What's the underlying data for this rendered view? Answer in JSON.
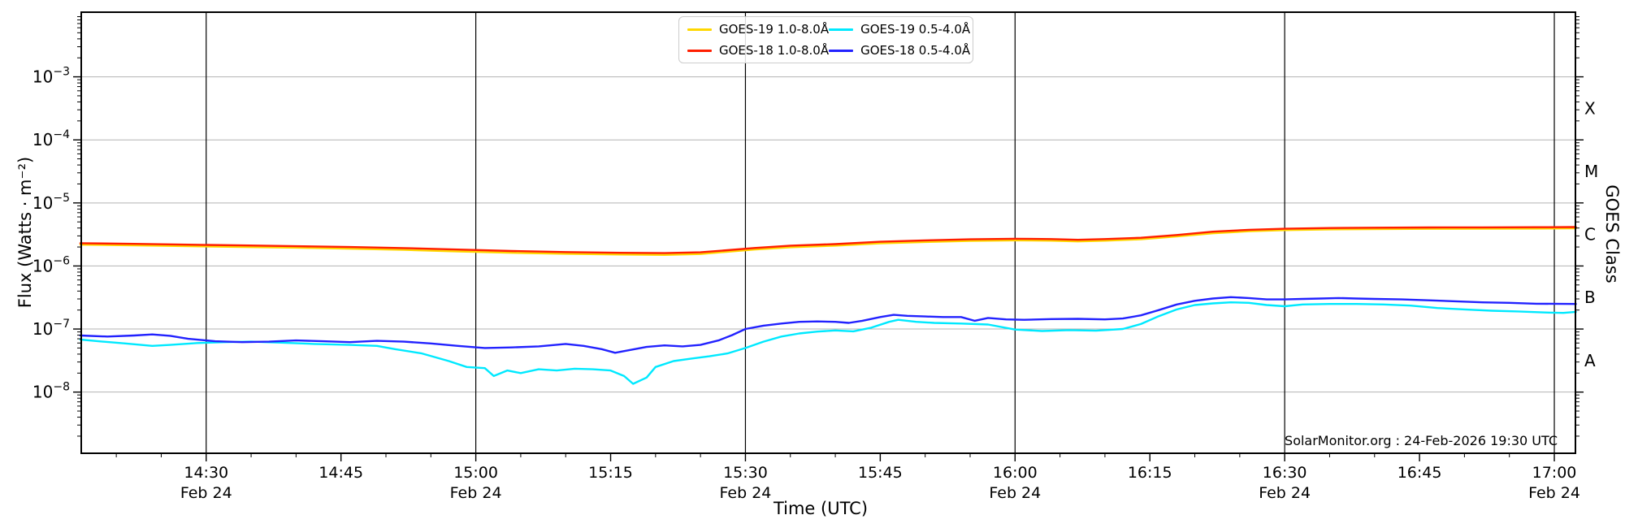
{
  "annotation": "SolarMonitor.org : 24-Feb-2026 19:30 UTC",
  "chart_data": {
    "type": "line",
    "title": "",
    "xlabel": "Time (UTC)",
    "ylabel_left": "Flux (Watts · m⁻²)",
    "ylabel_right": "GOES Class",
    "legend_position": "top-center",
    "grid": {
      "horizontal": "light-gray at each decade",
      "vertical": "black at 30-min ticks"
    },
    "xlim_minutes": [
      856.1,
      1022.35
    ],
    "ylim": [
      1.07e-09,
      0.0106
    ],
    "colors": {
      "grid_h": "#b3b3b3",
      "grid_v": "#000000",
      "spine": "#000000"
    },
    "x_ticks": [
      {
        "label": "14:30",
        "min": 870,
        "grid": true,
        "date": "Feb 24"
      },
      {
        "label": "14:45",
        "min": 885,
        "grid": false
      },
      {
        "label": "15:00",
        "min": 900,
        "grid": true,
        "date": "Feb 24"
      },
      {
        "label": "15:15",
        "min": 915,
        "grid": false
      },
      {
        "label": "15:30",
        "min": 930,
        "grid": true,
        "date": "Feb 24"
      },
      {
        "label": "15:45",
        "min": 945,
        "grid": false
      },
      {
        "label": "16:00",
        "min": 960,
        "grid": true,
        "date": "Feb 24"
      },
      {
        "label": "16:15",
        "min": 975,
        "grid": false
      },
      {
        "label": "16:30",
        "min": 990,
        "grid": true,
        "date": "Feb 24"
      },
      {
        "label": "16:45",
        "min": 1005,
        "grid": false
      },
      {
        "label": "17:00",
        "min": 1020,
        "grid": true,
        "date": "Feb 24"
      }
    ],
    "y_ticks": [
      {
        "exp": -3,
        "label": "10⁻³"
      },
      {
        "exp": -4,
        "label": "10⁻⁴"
      },
      {
        "exp": -5,
        "label": "10⁻⁵"
      },
      {
        "exp": -6,
        "label": "10⁻⁶"
      },
      {
        "exp": -7,
        "label": "10⁻⁷"
      },
      {
        "exp": -8,
        "label": "10⁻⁸"
      }
    ],
    "goes_classes": [
      {
        "label": "X",
        "mid_exp": -3.5
      },
      {
        "label": "M",
        "mid_exp": -4.5
      },
      {
        "label": "C",
        "mid_exp": -5.5
      },
      {
        "label": "B",
        "mid_exp": -6.5
      },
      {
        "label": "A",
        "mid_exp": -7.5
      }
    ],
    "series": [
      {
        "name": "GOES-19 long",
        "label": "GOES-19 1.0-8.0Å",
        "color": "#FFD700",
        "points": [
          [
            856,
            2.18e-06
          ],
          [
            862,
            2.12e-06
          ],
          [
            868,
            2.06e-06
          ],
          [
            874,
            2e-06
          ],
          [
            880,
            1.95e-06
          ],
          [
            886,
            1.88e-06
          ],
          [
            892,
            1.8e-06
          ],
          [
            898,
            1.7e-06
          ],
          [
            904,
            1.62e-06
          ],
          [
            910,
            1.56e-06
          ],
          [
            916,
            1.52e-06
          ],
          [
            921,
            1.5e-06
          ],
          [
            925,
            1.55e-06
          ],
          [
            928,
            1.68e-06
          ],
          [
            931,
            1.82e-06
          ],
          [
            935,
            1.98e-06
          ],
          [
            940,
            2.1e-06
          ],
          [
            945,
            2.28e-06
          ],
          [
            950,
            2.4e-06
          ],
          [
            955,
            2.5e-06
          ],
          [
            960,
            2.55e-06
          ],
          [
            964,
            2.52e-06
          ],
          [
            967,
            2.45e-06
          ],
          [
            970,
            2.52e-06
          ],
          [
            974,
            2.65e-06
          ],
          [
            978,
            2.95e-06
          ],
          [
            982,
            3.3e-06
          ],
          [
            986,
            3.55e-06
          ],
          [
            990,
            3.7e-06
          ],
          [
            995,
            3.8e-06
          ],
          [
            1000,
            3.85e-06
          ],
          [
            1006,
            3.88e-06
          ],
          [
            1012,
            3.9e-06
          ],
          [
            1018,
            3.92e-06
          ],
          [
            1022.4,
            3.95e-06
          ]
        ]
      },
      {
        "name": "GOES-18 long",
        "label": "GOES-18 1.0-8.0Å",
        "color": "#FF1E00",
        "points": [
          [
            856,
            2.3e-06
          ],
          [
            862,
            2.24e-06
          ],
          [
            868,
            2.18e-06
          ],
          [
            874,
            2.12e-06
          ],
          [
            880,
            2.06e-06
          ],
          [
            886,
            2e-06
          ],
          [
            892,
            1.92e-06
          ],
          [
            898,
            1.82e-06
          ],
          [
            904,
            1.73e-06
          ],
          [
            910,
            1.66e-06
          ],
          [
            916,
            1.62e-06
          ],
          [
            921,
            1.6e-06
          ],
          [
            925,
            1.65e-06
          ],
          [
            928,
            1.78e-06
          ],
          [
            931,
            1.93e-06
          ],
          [
            935,
            2.1e-06
          ],
          [
            940,
            2.22e-06
          ],
          [
            945,
            2.42e-06
          ],
          [
            950,
            2.55e-06
          ],
          [
            955,
            2.65e-06
          ],
          [
            960,
            2.7e-06
          ],
          [
            964,
            2.67e-06
          ],
          [
            967,
            2.6e-06
          ],
          [
            970,
            2.67e-06
          ],
          [
            974,
            2.8e-06
          ],
          [
            978,
            3.1e-06
          ],
          [
            982,
            3.5e-06
          ],
          [
            986,
            3.75e-06
          ],
          [
            990,
            3.9e-06
          ],
          [
            995,
            4e-06
          ],
          [
            1000,
            4.05e-06
          ],
          [
            1006,
            4.08e-06
          ],
          [
            1012,
            4.1e-06
          ],
          [
            1018,
            4.12e-06
          ],
          [
            1022.4,
            4.15e-06
          ]
        ]
      },
      {
        "name": "GOES-19 short",
        "label": "GOES-19 0.5-4.0Å",
        "color": "#00E9FF",
        "points": [
          [
            856,
            6.8e-08
          ],
          [
            858,
            6.4e-08
          ],
          [
            861,
            5.9e-08
          ],
          [
            864,
            5.4e-08
          ],
          [
            866,
            5.6e-08
          ],
          [
            869,
            6e-08
          ],
          [
            872,
            6.2e-08
          ],
          [
            875,
            6.3e-08
          ],
          [
            878,
            6.1e-08
          ],
          [
            882,
            5.8e-08
          ],
          [
            886,
            5.6e-08
          ],
          [
            889,
            5.4e-08
          ],
          [
            891,
            4.8e-08
          ],
          [
            894,
            4.1e-08
          ],
          [
            897,
            3.1e-08
          ],
          [
            899,
            2.5e-08
          ],
          [
            901,
            2.4e-08
          ],
          [
            902,
            1.8e-08
          ],
          [
            903.5,
            2.2e-08
          ],
          [
            905,
            2e-08
          ],
          [
            907,
            2.3e-08
          ],
          [
            909,
            2.2e-08
          ],
          [
            911,
            2.35e-08
          ],
          [
            913,
            2.3e-08
          ],
          [
            915,
            2.2e-08
          ],
          [
            916.5,
            1.8e-08
          ],
          [
            917.5,
            1.35e-08
          ],
          [
            919,
            1.7e-08
          ],
          [
            920,
            2.5e-08
          ],
          [
            922,
            3.1e-08
          ],
          [
            924,
            3.4e-08
          ],
          [
            926,
            3.7e-08
          ],
          [
            928,
            4.1e-08
          ],
          [
            930,
            5e-08
          ],
          [
            932,
            6.3e-08
          ],
          [
            934,
            7.6e-08
          ],
          [
            936,
            8.5e-08
          ],
          [
            938,
            9.1e-08
          ],
          [
            940,
            9.5e-08
          ],
          [
            942,
            9.2e-08
          ],
          [
            944,
            1.05e-07
          ],
          [
            946,
            1.3e-07
          ],
          [
            947,
            1.4e-07
          ],
          [
            949,
            1.3e-07
          ],
          [
            951,
            1.25e-07
          ],
          [
            954,
            1.22e-07
          ],
          [
            957,
            1.18e-07
          ],
          [
            960,
            9.8e-08
          ],
          [
            963,
            9.3e-08
          ],
          [
            966,
            9.6e-08
          ],
          [
            969,
            9.4e-08
          ],
          [
            972,
            1e-07
          ],
          [
            974,
            1.2e-07
          ],
          [
            976,
            1.6e-07
          ],
          [
            978,
            2.05e-07
          ],
          [
            980,
            2.4e-07
          ],
          [
            982,
            2.55e-07
          ],
          [
            984,
            2.65e-07
          ],
          [
            986,
            2.6e-07
          ],
          [
            988,
            2.4e-07
          ],
          [
            990,
            2.3e-07
          ],
          [
            992,
            2.45e-07
          ],
          [
            995,
            2.5e-07
          ],
          [
            998,
            2.5e-07
          ],
          [
            1001,
            2.45e-07
          ],
          [
            1004,
            2.35e-07
          ],
          [
            1007,
            2.15e-07
          ],
          [
            1010,
            2.05e-07
          ],
          [
            1013,
            1.95e-07
          ],
          [
            1016,
            1.9e-07
          ],
          [
            1019,
            1.83e-07
          ],
          [
            1021,
            1.8e-07
          ],
          [
            1022.4,
            1.87e-07
          ]
        ]
      },
      {
        "name": "GOES-18 short",
        "label": "GOES-18 0.5-4.0Å",
        "color": "#2222FF",
        "points": [
          [
            856,
            7.9e-08
          ],
          [
            859,
            7.6e-08
          ],
          [
            862,
            7.9e-08
          ],
          [
            864,
            8.2e-08
          ],
          [
            866,
            7.8e-08
          ],
          [
            868,
            7e-08
          ],
          [
            871,
            6.4e-08
          ],
          [
            874,
            6.2e-08
          ],
          [
            877,
            6.3e-08
          ],
          [
            880,
            6.6e-08
          ],
          [
            883,
            6.4e-08
          ],
          [
            886,
            6.2e-08
          ],
          [
            889,
            6.5e-08
          ],
          [
            892,
            6.3e-08
          ],
          [
            895,
            5.9e-08
          ],
          [
            898,
            5.4e-08
          ],
          [
            901,
            5e-08
          ],
          [
            904,
            5.1e-08
          ],
          [
            907,
            5.3e-08
          ],
          [
            910,
            5.8e-08
          ],
          [
            912,
            5.4e-08
          ],
          [
            914,
            4.8e-08
          ],
          [
            915.5,
            4.2e-08
          ],
          [
            917,
            4.6e-08
          ],
          [
            919,
            5.2e-08
          ],
          [
            921,
            5.5e-08
          ],
          [
            923,
            5.3e-08
          ],
          [
            925,
            5.6e-08
          ],
          [
            927,
            6.6e-08
          ],
          [
            928.5,
            8e-08
          ],
          [
            930,
            1e-07
          ],
          [
            932,
            1.13e-07
          ],
          [
            934,
            1.22e-07
          ],
          [
            936,
            1.3e-07
          ],
          [
            938,
            1.32e-07
          ],
          [
            940,
            1.3e-07
          ],
          [
            941.5,
            1.25e-07
          ],
          [
            943,
            1.35e-07
          ],
          [
            945,
            1.55e-07
          ],
          [
            946.5,
            1.68e-07
          ],
          [
            948,
            1.62e-07
          ],
          [
            950,
            1.58e-07
          ],
          [
            952,
            1.55e-07
          ],
          [
            954,
            1.55e-07
          ],
          [
            955.5,
            1.35e-07
          ],
          [
            957,
            1.5e-07
          ],
          [
            959,
            1.42e-07
          ],
          [
            961,
            1.4e-07
          ],
          [
            964,
            1.44e-07
          ],
          [
            967,
            1.45e-07
          ],
          [
            970,
            1.42e-07
          ],
          [
            972,
            1.47e-07
          ],
          [
            974,
            1.65e-07
          ],
          [
            976,
            2e-07
          ],
          [
            978,
            2.45e-07
          ],
          [
            980,
            2.8e-07
          ],
          [
            982,
            3.05e-07
          ],
          [
            984,
            3.2e-07
          ],
          [
            986,
            3.1e-07
          ],
          [
            988,
            2.95e-07
          ],
          [
            990,
            2.95e-07
          ],
          [
            992,
            3e-07
          ],
          [
            994,
            3.05e-07
          ],
          [
            996,
            3.1e-07
          ],
          [
            998,
            3.05e-07
          ],
          [
            1000,
            3e-07
          ],
          [
            1003,
            2.95e-07
          ],
          [
            1006,
            2.85e-07
          ],
          [
            1009,
            2.75e-07
          ],
          [
            1012,
            2.65e-07
          ],
          [
            1015,
            2.6e-07
          ],
          [
            1018,
            2.52e-07
          ],
          [
            1022.4,
            2.5e-07
          ]
        ]
      }
    ]
  }
}
